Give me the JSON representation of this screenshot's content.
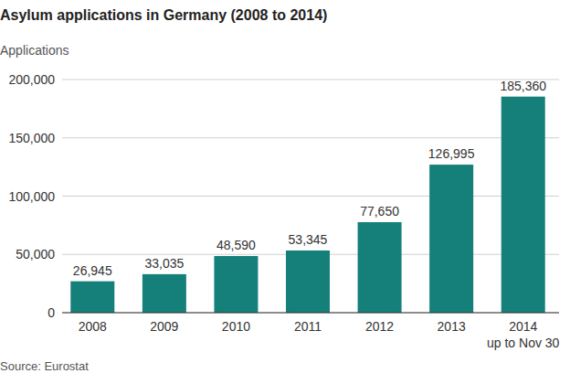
{
  "chart_data": {
    "type": "bar",
    "title": "Asylum applications in Germany (2008 to 2014)",
    "y_label": "Applications",
    "source": "Source: Eurostat",
    "categories": [
      "2008",
      "2009",
      "2010",
      "2011",
      "2012",
      "2013",
      "2014\nup to Nov 30"
    ],
    "values": [
      26945,
      33035,
      48590,
      53345,
      77650,
      126995,
      185360
    ],
    "value_labels": [
      "26,945",
      "33,035",
      "48,590",
      "53,345",
      "77,650",
      "126,995",
      "185,360"
    ],
    "color": "#157f7a",
    "ylim": [
      0,
      200000
    ],
    "yticks": [
      0,
      {
        "value": 50000,
        "label": "50,000"
      },
      {
        "value": 100000,
        "label": "100,000"
      },
      {
        "value": 150000,
        "label": "150,000"
      },
      {
        "value": 200000,
        "label": "200,000"
      }
    ],
    "grid": true,
    "data_labels": true
  }
}
